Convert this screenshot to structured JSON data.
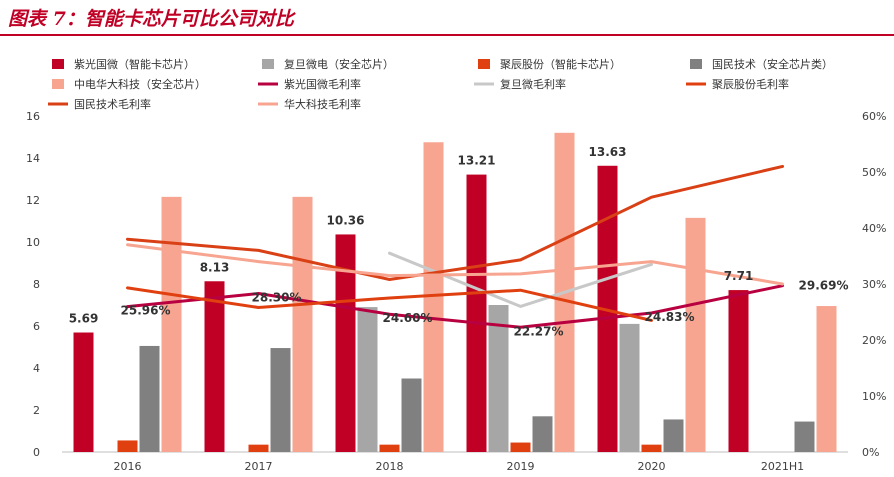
{
  "title": "图表 7：智能卡芯片可比公司对比",
  "colors": {
    "title": "#c00025",
    "ziguang_bar": "#c00025",
    "fudan_bar": "#a6a6a6",
    "juchen_bar": "#e04010",
    "guomin_bar": "#808080",
    "huada_bar": "#f7a590",
    "ziguang_line": "#b80040",
    "fudan_line": "#c8c8c8",
    "juchen_line": "#e04010",
    "guomin_line": "#d94015",
    "huada_line": "#f7a590"
  },
  "chart_data": {
    "type": "bar",
    "categories": [
      "2016",
      "2017",
      "2018",
      "2019",
      "2020",
      "2021H1"
    ],
    "ylim_left": [
      0,
      16
    ],
    "yticks_left": [
      "0",
      "2",
      "4",
      "6",
      "8",
      "10",
      "12",
      "14",
      "16"
    ],
    "ylim_right": [
      0,
      60
    ],
    "yticks_right": [
      "0%",
      "10%",
      "20%",
      "30%",
      "40%",
      "50%",
      "60%"
    ],
    "legend_position": "top",
    "series": [
      {
        "name": "紫光国微（智能卡芯片）",
        "kind": "bar",
        "color_key": "ziguang_bar",
        "values": [
          5.69,
          8.13,
          10.36,
          13.21,
          13.63,
          7.71
        ]
      },
      {
        "name": "复旦微电（安全芯片）",
        "kind": "bar",
        "color_key": "fudan_bar",
        "values": [
          null,
          null,
          6.9,
          7.0,
          6.1,
          null
        ]
      },
      {
        "name": "聚辰股份（智能卡芯片）",
        "kind": "bar",
        "color_key": "juchen_bar",
        "values": [
          0.55,
          0.35,
          0.35,
          0.45,
          0.35,
          null
        ]
      },
      {
        "name": "国民技术（安全芯片类）",
        "kind": "bar",
        "color_key": "guomin_bar",
        "values": [
          5.05,
          4.95,
          3.5,
          1.7,
          1.55,
          1.45
        ]
      },
      {
        "name": "中电华大科技（安全芯片）",
        "kind": "bar",
        "color_key": "huada_bar",
        "values": [
          12.15,
          12.15,
          14.75,
          15.2,
          11.15,
          6.95
        ]
      },
      {
        "name": "紫光国微毛利率",
        "kind": "line",
        "color_key": "ziguang_line",
        "values": [
          25.96,
          28.3,
          24.6,
          22.27,
          24.83,
          29.69
        ]
      },
      {
        "name": "复旦微毛利率",
        "kind": "line",
        "color_key": "fudan_line",
        "values": [
          null,
          null,
          35.5,
          26.0,
          33.5,
          null
        ]
      },
      {
        "name": "聚辰股份毛利率",
        "kind": "line",
        "color_key": "juchen_line",
        "values": [
          29.3,
          25.8,
          27.5,
          28.9,
          23.5,
          null
        ]
      },
      {
        "name": "国民技术毛利率",
        "kind": "line",
        "color_key": "guomin_line",
        "values": [
          38.0,
          36.0,
          30.8,
          34.3,
          45.5,
          51.0
        ]
      },
      {
        "name": "华大科技毛利率",
        "kind": "line",
        "color_key": "huada_line",
        "values": [
          37.0,
          34.0,
          31.5,
          31.8,
          34.0,
          30.0
        ]
      }
    ],
    "bar_labels": [
      "5.69",
      "8.13",
      "10.36",
      "13.21",
      "13.63",
      "7.71"
    ],
    "line_labels": [
      "25.96%",
      "28.30%",
      "24.60%",
      "22.27%",
      "24.83%",
      "29.69%"
    ]
  }
}
